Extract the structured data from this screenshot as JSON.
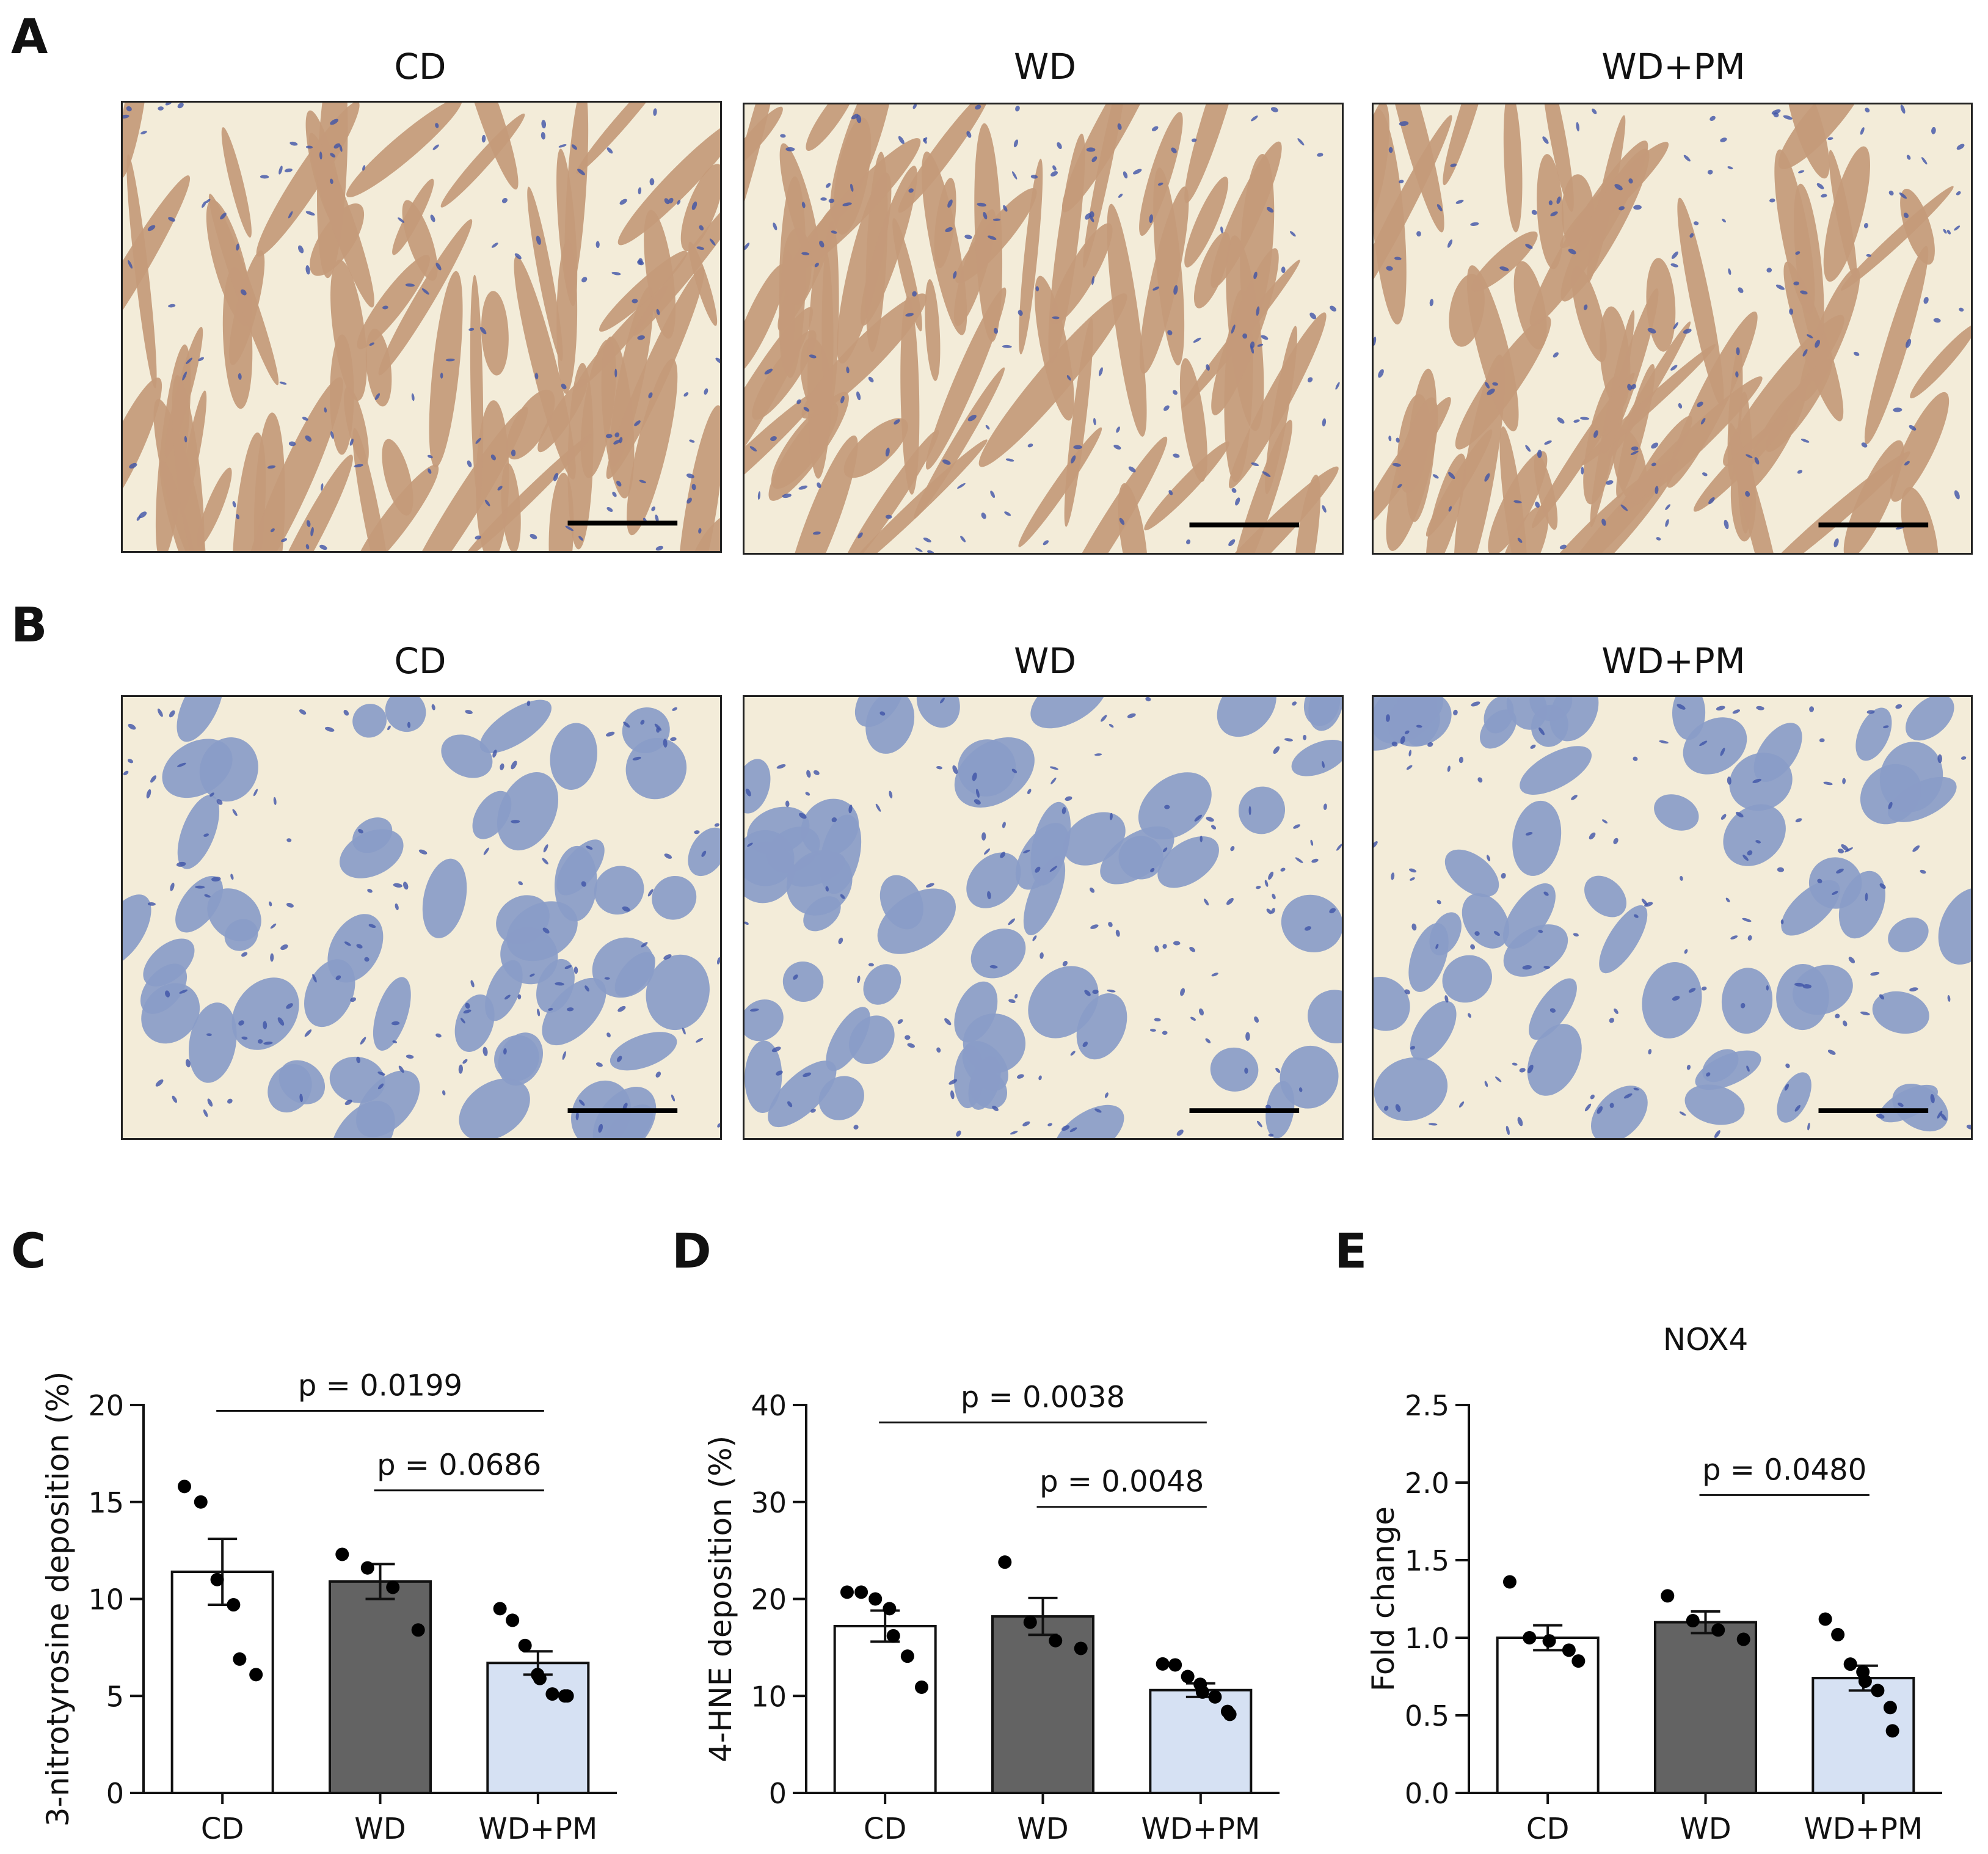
{
  "panels": {
    "A": {
      "letter": "A",
      "images": [
        {
          "title": "CD",
          "stain": "brown"
        },
        {
          "title": "WD",
          "stain": "brown"
        },
        {
          "title": "WD+PM",
          "stain": "brown"
        }
      ]
    },
    "B": {
      "letter": "B",
      "images": [
        {
          "title": "CD",
          "stain": "blue"
        },
        {
          "title": "WD",
          "stain": "blue"
        },
        {
          "title": "WD+PM",
          "stain": "blue"
        }
      ]
    }
  },
  "colors": {
    "CD": "#ffffff",
    "WD": "#636363",
    "WD+PM": "#d6e1f3",
    "tissue_brown": "#c49a7a",
    "tissue_blue": "#8a9cc8",
    "background_tissue": "#f3ecd9"
  },
  "chart_data": [
    {
      "letter": "C",
      "type": "bar",
      "title": "",
      "ylabel": "3-nitrotyrosine deposition (%)",
      "categories": [
        "CD",
        "WD",
        "WD+PM"
      ],
      "ylim": [
        0,
        20
      ],
      "yticks": [
        0,
        5,
        10,
        15,
        20
      ],
      "values": [
        11.4,
        10.9,
        6.7
      ],
      "errors": [
        1.7,
        0.9,
        0.6
      ],
      "points": [
        [
          15.8,
          15.0,
          11.0,
          9.7,
          6.9,
          6.1
        ],
        [
          12.3,
          11.6,
          10.6,
          8.4
        ],
        [
          9.5,
          8.9,
          7.6,
          6.1,
          5.9,
          5.1,
          5.0,
          5.0
        ]
      ],
      "comparisons": [
        {
          "from": 0,
          "to": 2,
          "label": "p = 0.0199",
          "y": 19.7
        },
        {
          "from": 1,
          "to": 2,
          "label": "p = 0.0686",
          "y": 15.6
        }
      ]
    },
    {
      "letter": "D",
      "type": "bar",
      "title": "",
      "ylabel": "4-HNE deposition (%)",
      "categories": [
        "CD",
        "WD",
        "WD+PM"
      ],
      "ylim": [
        0,
        40
      ],
      "yticks": [
        0,
        10,
        20,
        30,
        40
      ],
      "values": [
        17.2,
        18.2,
        10.6
      ],
      "errors": [
        1.6,
        1.9,
        0.7
      ],
      "points": [
        [
          20.7,
          20.7,
          20.0,
          19.0,
          16.2,
          14.1,
          10.9
        ],
        [
          23.8,
          17.6,
          15.7,
          14.9
        ],
        [
          13.3,
          13.2,
          12.0,
          11.2,
          10.4,
          9.9,
          8.4,
          8.1
        ]
      ],
      "comparisons": [
        {
          "from": 0,
          "to": 2,
          "label": "p = 0.0038",
          "y": 38.2
        },
        {
          "from": 1,
          "to": 2,
          "label": "p = 0.0048",
          "y": 29.5
        }
      ]
    },
    {
      "letter": "E",
      "type": "bar",
      "title": "NOX4",
      "ylabel": "Fold change",
      "categories": [
        "CD",
        "WD",
        "WD+PM"
      ],
      "ylim": [
        0,
        2.5
      ],
      "yticks": [
        0.0,
        0.5,
        1.0,
        1.5,
        2.0,
        2.5
      ],
      "ytick_labels": [
        "0.0",
        "0.5",
        "1.0",
        "1.5",
        "2.0",
        "2.5"
      ],
      "values": [
        1.0,
        1.1,
        0.74
      ],
      "errors": [
        0.08,
        0.07,
        0.08
      ],
      "points": [
        [
          1.36,
          1.0,
          0.98,
          0.92,
          0.85
        ],
        [
          1.27,
          1.11,
          1.05,
          0.99
        ],
        [
          1.12,
          1.02,
          0.83,
          0.78,
          0.72,
          0.66,
          0.55,
          0.4
        ]
      ],
      "comparisons": [
        {
          "from": 1,
          "to": 2,
          "label": "p = 0.0480",
          "y": 1.92
        }
      ]
    }
  ]
}
